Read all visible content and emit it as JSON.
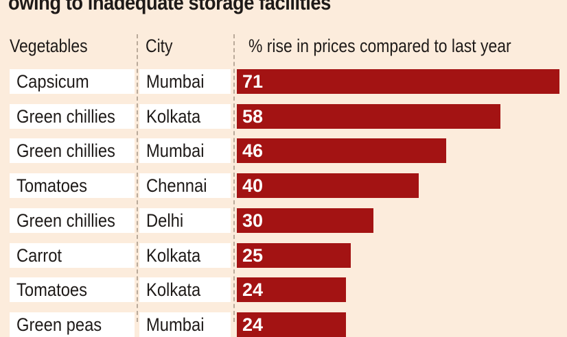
{
  "title": "owing to inadequate storage facilities",
  "chart_data": {
    "type": "bar",
    "orientation": "horizontal",
    "columns": [
      "Vegetables",
      "City",
      "% rise in prices compared to last year"
    ],
    "rows": [
      {
        "vegetable": "Capsicum",
        "city": "Mumbai",
        "value": 71
      },
      {
        "vegetable": "Green chillies",
        "city": "Kolkata",
        "value": 58
      },
      {
        "vegetable": "Green chillies",
        "city": "Mumbai",
        "value": 46
      },
      {
        "vegetable": "Tomatoes",
        "city": "Chennai",
        "value": 40
      },
      {
        "vegetable": "Green chillies",
        "city": "Delhi",
        "value": 30
      },
      {
        "vegetable": "Carrot",
        "city": "Kolkata",
        "value": 25
      },
      {
        "vegetable": "Tomatoes",
        "city": "Kolkata",
        "value": 24
      },
      {
        "vegetable": "Green peas",
        "city": "Mumbai",
        "value": 24
      }
    ],
    "bar_color": "#a31313",
    "background": "#fcecdc"
  }
}
